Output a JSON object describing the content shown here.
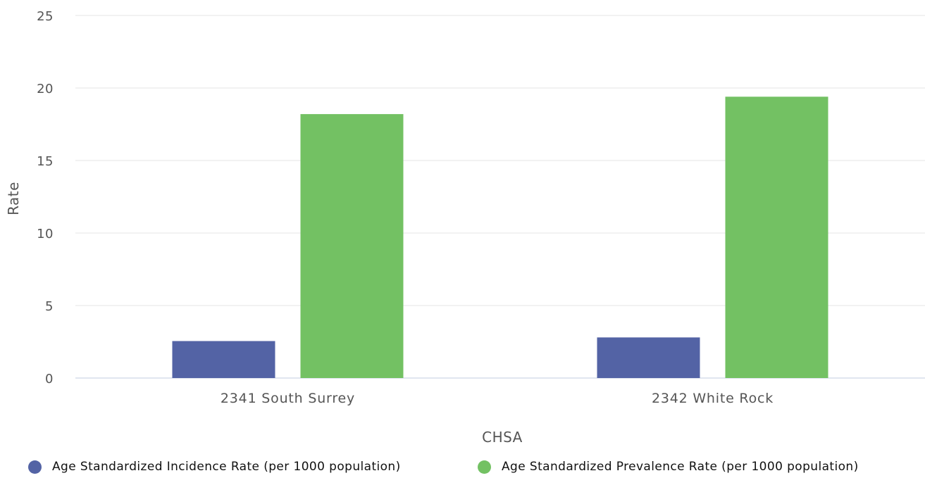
{
  "chart_data": {
    "type": "bar",
    "categories": [
      "2341 South Surrey",
      "2342 White Rock"
    ],
    "series": [
      {
        "name": "Age Standardized Incidence Rate (per 1000 population)",
        "values": [
          2.55,
          2.8
        ],
        "color": "#5363a5"
      },
      {
        "name": "Age Standardized Prevalence Rate (per 1000 population)",
        "values": [
          18.2,
          19.4
        ],
        "color": "#73c163"
      }
    ],
    "xlabel": "CHSA",
    "ylabel": "Rate",
    "ylim": [
      0,
      25
    ],
    "yticks": [
      "0",
      "5",
      "10",
      "15",
      "20",
      "25"
    ],
    "grid": true,
    "legend_position": "bottom"
  }
}
